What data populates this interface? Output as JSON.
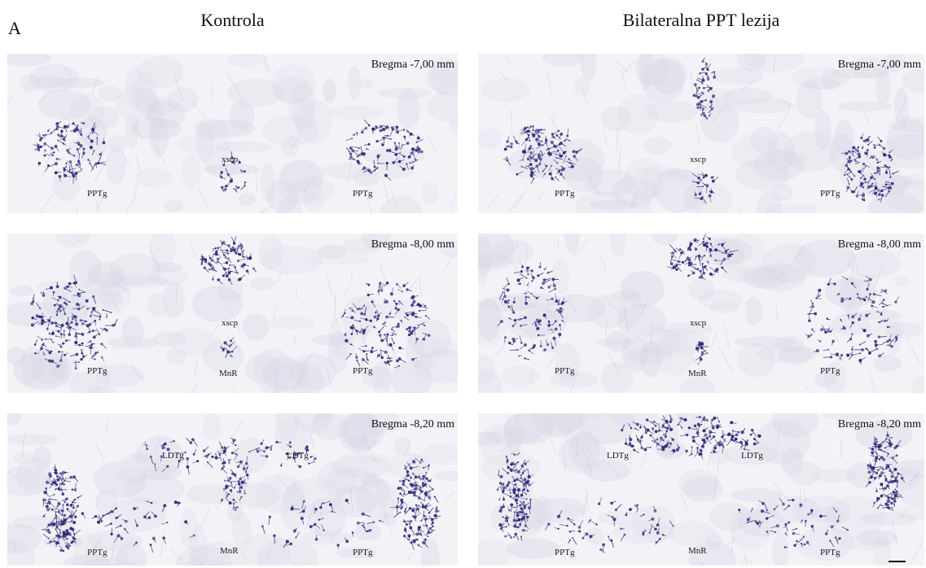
{
  "figure": {
    "panel_letter": "A",
    "columns": [
      "Kontrola",
      "Bilateralna PPT lezija"
    ]
  },
  "sections": [
    {
      "column": "Kontrola",
      "bregma": "Bregma -7,00 mm",
      "labels": [
        "PPTg",
        "xscp",
        "PPTg"
      ]
    },
    {
      "column": "Bilateralna PPT lezija",
      "bregma": "Bregma -7,00 mm",
      "labels": [
        "PPTg",
        "xscp",
        "PPTg"
      ]
    },
    {
      "column": "Kontrola",
      "bregma": "Bregma -8,00 mm",
      "labels": [
        "PPTg",
        "xscp",
        "MnR",
        "PPTg"
      ]
    },
    {
      "column": "Bilateralna PPT lezija",
      "bregma": "Bregma -8,00 mm",
      "labels": [
        "PPTg",
        "xscp",
        "MnR",
        "PPTg"
      ]
    },
    {
      "column": "Kontrola",
      "bregma": "Bregma -8,20 mm",
      "labels": [
        "LDTg",
        "LDTg",
        "PPTg",
        "MnR",
        "PPTg"
      ]
    },
    {
      "column": "Bilateralna PPT lezija",
      "bregma": "Bregma -8,20 mm",
      "labels": [
        "LDTg",
        "LDTg",
        "PPTg",
        "MnR",
        "PPTg"
      ]
    }
  ],
  "colors": {
    "stain": "#2a2a7a",
    "background": "#f3f2f6"
  }
}
